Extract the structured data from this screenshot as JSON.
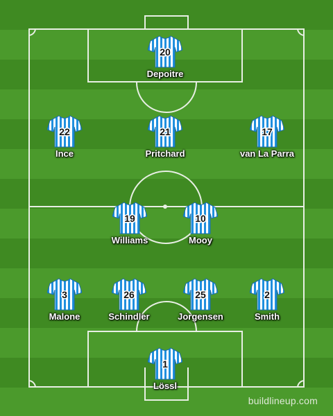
{
  "players": [
    {
      "key": "depoitre",
      "number": "20",
      "name": "Depoitre"
    },
    {
      "key": "ince",
      "number": "22",
      "name": "Ince"
    },
    {
      "key": "pritchard",
      "number": "21",
      "name": "Pritchard"
    },
    {
      "key": "van-la-parra",
      "number": "17",
      "name": "van La Parra"
    },
    {
      "key": "williams",
      "number": "19",
      "name": "Williams"
    },
    {
      "key": "mooy",
      "number": "10",
      "name": "Mooy"
    },
    {
      "key": "malone",
      "number": "3",
      "name": "Malone"
    },
    {
      "key": "schindler",
      "number": "26",
      "name": "Schindler"
    },
    {
      "key": "jorgensen",
      "number": "25",
      "name": "Jorgensen"
    },
    {
      "key": "smith",
      "number": "2",
      "name": "Smith"
    },
    {
      "key": "lossl",
      "number": "1",
      "name": "Lössl"
    }
  ],
  "watermark": "buildlineup.com",
  "colors": {
    "shirt_stripe": "#1f8fde",
    "shirt_base": "#ffffff",
    "pitch_dark": "#3f8a22",
    "pitch_light": "#4b9a2c"
  }
}
